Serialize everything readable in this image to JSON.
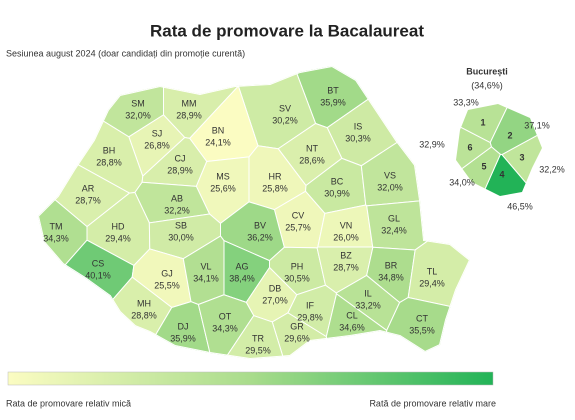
{
  "chart_data": {
    "type": "choropleth",
    "title": "Rata de promovare la Bacalaureat",
    "subtitle": "Sesiunea august 2024 (doar candidați din promoție curentă)",
    "color_scale": [
      "#fbfcc2",
      "#a9dc8c",
      "#22b357"
    ],
    "counties": [
      {
        "code": "SM",
        "value": 32.0,
        "value_label": "32,0%"
      },
      {
        "code": "MM",
        "value": 28.9,
        "value_label": "28,9%"
      },
      {
        "code": "BT",
        "value": 35.9,
        "value_label": "35,9%"
      },
      {
        "code": "SV",
        "value": 30.2,
        "value_label": "30,2%"
      },
      {
        "code": "SJ",
        "value": 26.8,
        "value_label": "26,8%"
      },
      {
        "code": "BN",
        "value": 24.1,
        "value_label": "24,1%"
      },
      {
        "code": "IS",
        "value": 30.3,
        "value_label": "30,3%"
      },
      {
        "code": "BH",
        "value": 28.8,
        "value_label": "28,8%"
      },
      {
        "code": "CJ",
        "value": 28.9,
        "value_label": "28,9%"
      },
      {
        "code": "NT",
        "value": 28.6,
        "value_label": "28,6%"
      },
      {
        "code": "MS",
        "value": 25.6,
        "value_label": "25,6%"
      },
      {
        "code": "HR",
        "value": 25.8,
        "value_label": "25,8%"
      },
      {
        "code": "BC",
        "value": 30.9,
        "value_label": "30,9%"
      },
      {
        "code": "VS",
        "value": 32.0,
        "value_label": "32,0%"
      },
      {
        "code": "AR",
        "value": 28.7,
        "value_label": "28,7%"
      },
      {
        "code": "AB",
        "value": 32.2,
        "value_label": "32,2%"
      },
      {
        "code": "CV",
        "value": 25.7,
        "value_label": "25,7%"
      },
      {
        "code": "TM",
        "value": 34.3,
        "value_label": "34,3%"
      },
      {
        "code": "HD",
        "value": 29.4,
        "value_label": "29,4%"
      },
      {
        "code": "SB",
        "value": 30.0,
        "value_label": "30,0%"
      },
      {
        "code": "BV",
        "value": 36.2,
        "value_label": "36,2%"
      },
      {
        "code": "VN",
        "value": 26.0,
        "value_label": "26,0%"
      },
      {
        "code": "GL",
        "value": 32.4,
        "value_label": "32,4%"
      },
      {
        "code": "CS",
        "value": 40.1,
        "value_label": "40,1%"
      },
      {
        "code": "GJ",
        "value": 25.5,
        "value_label": "25,5%"
      },
      {
        "code": "VL",
        "value": 34.1,
        "value_label": "34,1%"
      },
      {
        "code": "AG",
        "value": 38.4,
        "value_label": "38,4%"
      },
      {
        "code": "PH",
        "value": 30.5,
        "value_label": "30,5%"
      },
      {
        "code": "BZ",
        "value": 28.7,
        "value_label": "28,7%"
      },
      {
        "code": "BR",
        "value": 34.8,
        "value_label": "34,8%"
      },
      {
        "code": "TL",
        "value": 29.4,
        "value_label": "29,4%"
      },
      {
        "code": "MH",
        "value": 28.8,
        "value_label": "28,8%"
      },
      {
        "code": "DB",
        "value": 27.0,
        "value_label": "27,0%"
      },
      {
        "code": "IF",
        "value": 29.8,
        "value_label": "29,8%"
      },
      {
        "code": "IL",
        "value": 33.2,
        "value_label": "33,2%"
      },
      {
        "code": "DJ",
        "value": 35.9,
        "value_label": "35,9%"
      },
      {
        "code": "OT",
        "value": 34.3,
        "value_label": "34,3%"
      },
      {
        "code": "GR",
        "value": 29.6,
        "value_label": "29,6%"
      },
      {
        "code": "CL",
        "value": 34.6,
        "value_label": "34,6%"
      },
      {
        "code": "CT",
        "value": 35.5,
        "value_label": "35,5%"
      },
      {
        "code": "TR",
        "value": 29.5,
        "value_label": "29,5%"
      }
    ],
    "bucharest": {
      "name": "București",
      "value": 34.6,
      "value_label": "(34,6%)",
      "sectors": [
        {
          "number": "1",
          "value": 33.3,
          "value_label": "33,3%"
        },
        {
          "number": "2",
          "value": 37.1,
          "value_label": "37,1%"
        },
        {
          "number": "3",
          "value": 32.2,
          "value_label": "32,2%"
        },
        {
          "number": "4",
          "value": 46.5,
          "value_label": "46,5%"
        },
        {
          "number": "5",
          "value": 34.0,
          "value_label": "34,0%"
        },
        {
          "number": "6",
          "value": 32.9,
          "value_label": "32,9%"
        }
      ]
    },
    "legend": {
      "low": "Rata de promovare relativ mică",
      "high": "Rată de promovare relativ mare"
    }
  }
}
